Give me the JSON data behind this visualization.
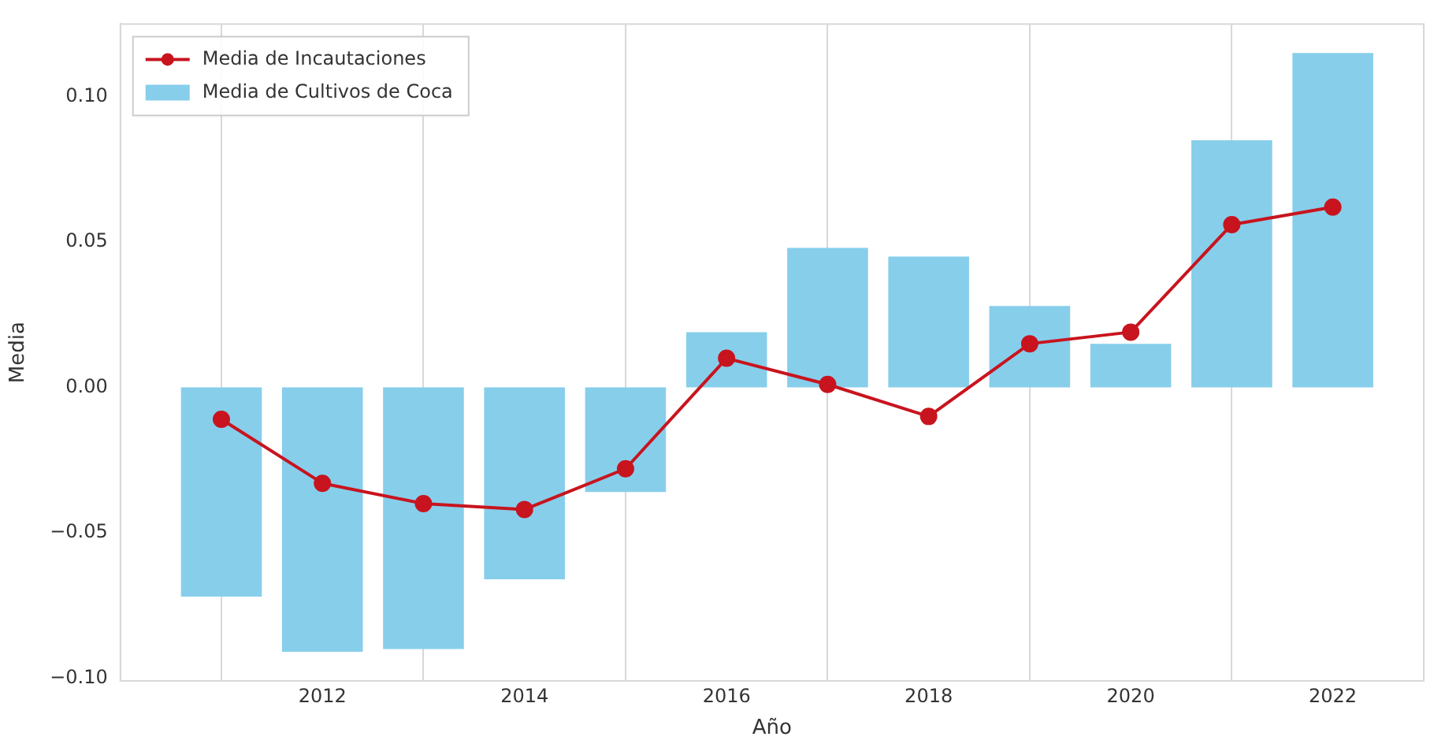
{
  "chart_data": {
    "type": "bar",
    "xlabel": "Año",
    "ylabel": "Media",
    "x": [
      2011,
      2012,
      2013,
      2014,
      2015,
      2016,
      2017,
      2018,
      2019,
      2020,
      2021,
      2022
    ],
    "series": [
      {
        "name": "Media de Cultivos de Coca",
        "color": "#87ceeb",
        "values": [
          -0.072,
          -0.091,
          -0.09,
          -0.066,
          -0.036,
          0.019,
          0.048,
          0.045,
          0.028,
          0.015,
          0.085,
          0.115
        ]
      },
      {
        "name": "Media de Incautaciones",
        "type": "line",
        "color": "#c8141e",
        "marker": "circle",
        "values": [
          -0.011,
          -0.033,
          -0.04,
          -0.042,
          -0.028,
          0.01,
          0.001,
          -0.01,
          0.015,
          0.019,
          0.056,
          0.062
        ]
      }
    ],
    "xlim": [
      2010,
      2022.9
    ],
    "xticks": [
      2012,
      2014,
      2016,
      2018,
      2020,
      2022
    ],
    "ylim": [
      -0.101,
      0.125
    ],
    "yticks": [
      {
        "value": -0.1,
        "label": "−0.10"
      },
      {
        "value": -0.05,
        "label": "−0.05"
      },
      {
        "value": 0,
        "label": "0.00"
      },
      {
        "value": 0.05,
        "label": "0.05"
      },
      {
        "value": 0.1,
        "label": "0.10"
      }
    ],
    "grid": "x",
    "legend": "top left"
  }
}
